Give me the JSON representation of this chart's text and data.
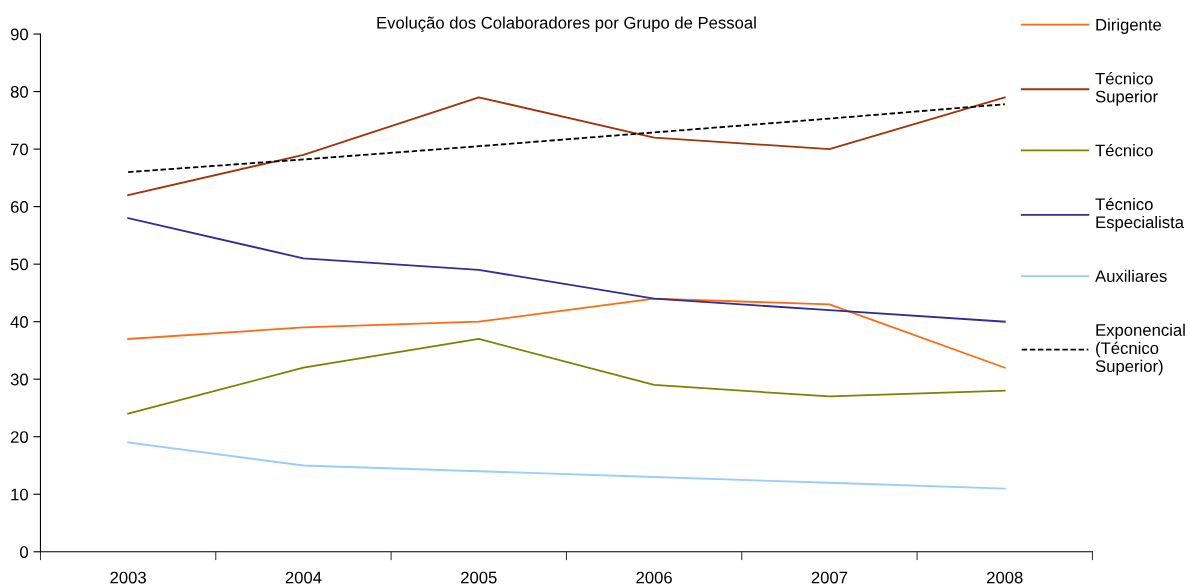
{
  "chart_data": {
    "type": "line",
    "title": "Evolução dos Colaboradores por Grupo de Pessoal",
    "categories": [
      "2003",
      "2004",
      "2005",
      "2006",
      "2007",
      "2008"
    ],
    "series": [
      {
        "name": "Dirigente",
        "color": "#ff6a13",
        "values": [
          37,
          39,
          40,
          44,
          43,
          32
        ]
      },
      {
        "name": "Técnico\nSuperior",
        "color": "#a0340a",
        "values": [
          62,
          69,
          79,
          72,
          70,
          79
        ]
      },
      {
        "name": "Técnico",
        "color": "#808000",
        "values": [
          24,
          32,
          37,
          29,
          27,
          28
        ]
      },
      {
        "name": "Técnico\nEspecialista",
        "color": "#2e2e96",
        "values": [
          58,
          51,
          49,
          44,
          42,
          40
        ]
      },
      {
        "name": "Auxiliares",
        "color": "#99ccff",
        "values": [
          19,
          15,
          14,
          13,
          12,
          11
        ]
      },
      {
        "name": "Exponencial\n(Técnico\nSuperior)",
        "color": "#000000",
        "type": "line",
        "line_style": "dashed",
        "values": [
          66,
          68.2,
          70.5,
          72.9,
          75.3,
          77.8
        ]
      }
    ],
    "ylim": [
      0,
      90
    ],
    "yticks": [
      0,
      10,
      20,
      30,
      40,
      50,
      60,
      70,
      80,
      90
    ],
    "grid": false,
    "legend": "right",
    "marker": "none",
    "line_style": "solid"
  }
}
